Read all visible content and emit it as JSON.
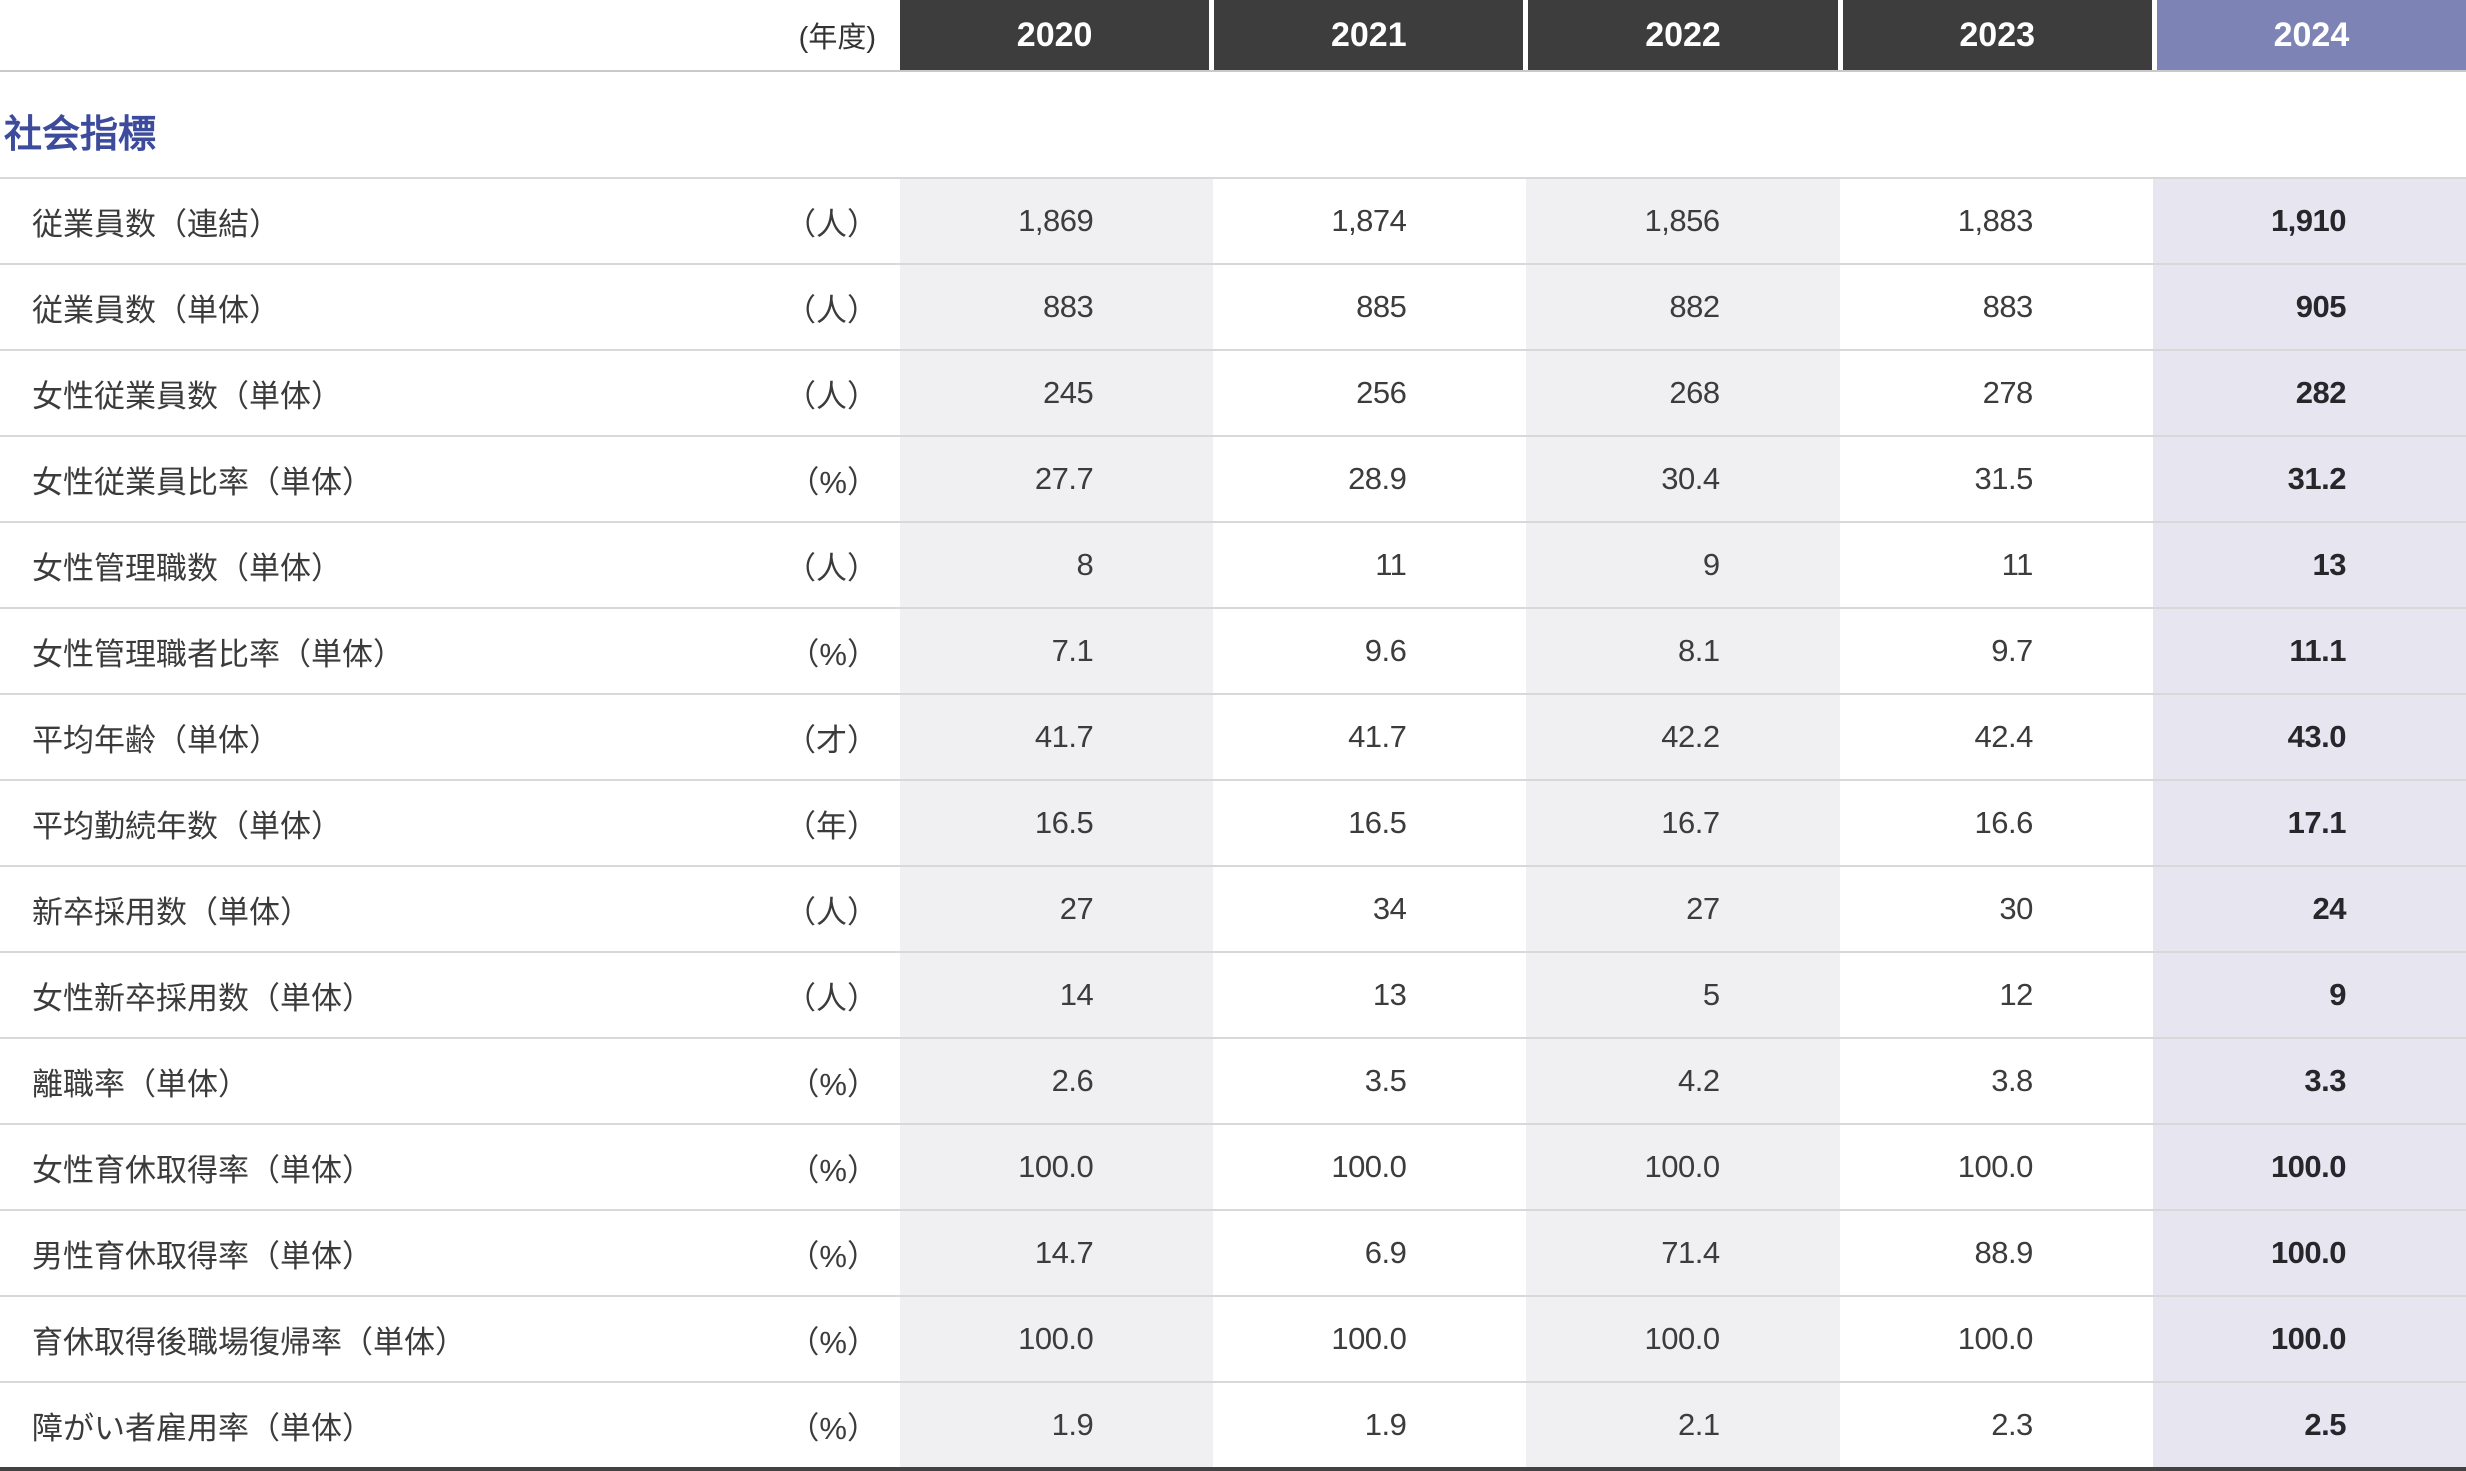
{
  "header": {
    "year_axis_label": "(年度)",
    "years": [
      "2020",
      "2021",
      "2022",
      "2023",
      "2024"
    ],
    "current_year": "2024"
  },
  "section": {
    "title": "社会指標"
  },
  "colors": {
    "year_header_bg": "#3d3d3d",
    "current_year_header_bg": "#7d84b5",
    "shaded_column_bg": "#f0f0f2",
    "current_column_bg": "#e7e6f0",
    "section_title": "#3d4b9c",
    "row_border": "#d8d8d8",
    "table_bottom_border": "#424242"
  },
  "table": {
    "rows": [
      {
        "label": "従業員数（連結）",
        "unit": "（人）",
        "values": [
          "1,869",
          "1,874",
          "1,856",
          "1,883",
          "1,910"
        ]
      },
      {
        "label": "従業員数（単体）",
        "unit": "（人）",
        "values": [
          "883",
          "885",
          "882",
          "883",
          "905"
        ]
      },
      {
        "label": "女性従業員数（単体）",
        "unit": "（人）",
        "values": [
          "245",
          "256",
          "268",
          "278",
          "282"
        ]
      },
      {
        "label": "女性従業員比率（単体）",
        "unit": "（%）",
        "values": [
          "27.7",
          "28.9",
          "30.4",
          "31.5",
          "31.2"
        ]
      },
      {
        "label": "女性管理職数（単体）",
        "unit": "（人）",
        "values": [
          "8",
          "11",
          "9",
          "11",
          "13"
        ]
      },
      {
        "label": "女性管理職者比率（単体）",
        "unit": "（%）",
        "values": [
          "7.1",
          "9.6",
          "8.1",
          "9.7",
          "11.1"
        ]
      },
      {
        "label": "平均年齢（単体）",
        "unit": "（才）",
        "values": [
          "41.7",
          "41.7",
          "42.2",
          "42.4",
          "43.0"
        ]
      },
      {
        "label": "平均勤続年数（単体）",
        "unit": "（年）",
        "values": [
          "16.5",
          "16.5",
          "16.7",
          "16.6",
          "17.1"
        ]
      },
      {
        "label": "新卒採用数（単体）",
        "unit": "（人）",
        "values": [
          "27",
          "34",
          "27",
          "30",
          "24"
        ]
      },
      {
        "label": "女性新卒採用数（単体）",
        "unit": "（人）",
        "values": [
          "14",
          "13",
          "5",
          "12",
          "9"
        ]
      },
      {
        "label": "離職率（単体）",
        "unit": "（%）",
        "values": [
          "2.6",
          "3.5",
          "4.2",
          "3.8",
          "3.3"
        ]
      },
      {
        "label": "女性育休取得率（単体）",
        "unit": "（%）",
        "values": [
          "100.0",
          "100.0",
          "100.0",
          "100.0",
          "100.0"
        ]
      },
      {
        "label": "男性育休取得率（単体）",
        "unit": "（%）",
        "values": [
          "14.7",
          "6.9",
          "71.4",
          "88.9",
          "100.0"
        ]
      },
      {
        "label": "育休取得後職場復帰率（単体）",
        "unit": "（%）",
        "values": [
          "100.0",
          "100.0",
          "100.0",
          "100.0",
          "100.0"
        ]
      },
      {
        "label": "障がい者雇用率（単体）",
        "unit": "（%）",
        "values": [
          "1.9",
          "1.9",
          "2.1",
          "2.3",
          "2.5"
        ]
      }
    ]
  }
}
